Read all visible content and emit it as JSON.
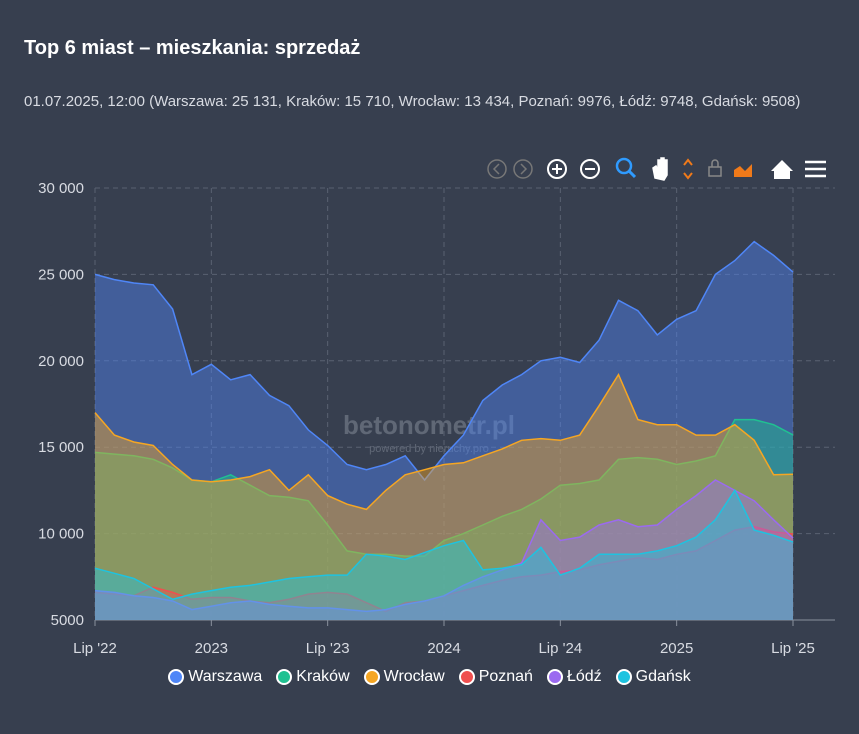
{
  "chart_data": {
    "type": "area",
    "title": "Top 6 miast – mieszkania: sprzedaż",
    "subtitle": "01.07.2025, 12:00 (Warszawa: 25 131, Kraków: 15 710, Wrocław: 13 434, Poznań: 9976, Łódź: 9748, Gdańsk: 9508)",
    "watermark": "betonometr.pl",
    "watermark_note": "powered by nieruchy.pro",
    "x": [
      "2022-07",
      "2022-08",
      "2022-09",
      "2022-10",
      "2022-11",
      "2022-12",
      "2023-01",
      "2023-02",
      "2023-03",
      "2023-04",
      "2023-05",
      "2023-06",
      "2023-07",
      "2023-08",
      "2023-09",
      "2023-10",
      "2023-11",
      "2023-12",
      "2024-01",
      "2024-02",
      "2024-03",
      "2024-04",
      "2024-05",
      "2024-06",
      "2024-07",
      "2024-08",
      "2024-09",
      "2024-10",
      "2024-11",
      "2024-12",
      "2025-01",
      "2025-02",
      "2025-03",
      "2025-04",
      "2025-05",
      "2025-06",
      "2025-07"
    ],
    "series": [
      {
        "name": "Warszawa",
        "color": "#4f86f7",
        "values": [
          25000,
          24700,
          24500,
          24400,
          23000,
          19200,
          19800,
          18900,
          19200,
          18000,
          17400,
          16000,
          15100,
          14000,
          13700,
          14000,
          14500,
          13100,
          14500,
          15700,
          17700,
          18600,
          19200,
          20000,
          20200,
          19900,
          21200,
          23500,
          22900,
          21500,
          22400,
          22900,
          25000,
          25800,
          26900,
          26100,
          25131
        ]
      },
      {
        "name": "Kraków",
        "color": "#20c191",
        "values": [
          14700,
          14600,
          14500,
          14300,
          13800,
          13100,
          13000,
          13400,
          12800,
          12200,
          12100,
          11900,
          10500,
          9000,
          8800,
          8800,
          8700,
          8700,
          9600,
          10000,
          10500,
          11000,
          11400,
          12000,
          12800,
          12900,
          13100,
          14300,
          14400,
          14300,
          14000,
          14200,
          14500,
          16600,
          16600,
          16300,
          15710
        ]
      },
      {
        "name": "Wrocław",
        "color": "#f5a623",
        "values": [
          17000,
          15700,
          15300,
          15100,
          14000,
          13100,
          13000,
          13100,
          13300,
          13700,
          12500,
          13400,
          12200,
          11700,
          11400,
          12500,
          13400,
          13700,
          14000,
          14100,
          14500,
          14900,
          15400,
          15500,
          15400,
          15700,
          17400,
          19200,
          16600,
          16300,
          16300,
          15700,
          15700,
          16300,
          15400,
          13400,
          13434
        ]
      },
      {
        "name": "Poznań",
        "color": "#ef4f4f",
        "values": [
          6600,
          6500,
          6400,
          6900,
          6600,
          6200,
          6300,
          6300,
          6100,
          6000,
          6200,
          6500,
          6600,
          6500,
          6000,
          5500,
          6000,
          6100,
          6400,
          6700,
          7000,
          7300,
          7500,
          7600,
          7800,
          7900,
          8200,
          8400,
          8600,
          8500,
          8800,
          9000,
          9600,
          10200,
          10400,
          10100,
          9976
        ]
      },
      {
        "name": "Łódź",
        "color": "#9b6af0",
        "values": [
          6700,
          6600,
          6400,
          6300,
          6100,
          5600,
          5800,
          6000,
          6100,
          5900,
          5800,
          5700,
          5700,
          5600,
          5500,
          5600,
          5900,
          6100,
          6400,
          7000,
          7500,
          7900,
          8300,
          10800,
          9600,
          9800,
          10500,
          10800,
          10400,
          10500,
          11400,
          12200,
          13100,
          12500,
          11900,
          10800,
          9748
        ]
      },
      {
        "name": "Gdańsk",
        "color": "#1ec3e0",
        "values": [
          8000,
          7700,
          7400,
          6800,
          6200,
          6500,
          6700,
          6900,
          7000,
          7200,
          7400,
          7500,
          7600,
          7600,
          8800,
          8700,
          8500,
          8900,
          9300,
          9600,
          7900,
          8000,
          8200,
          9200,
          7600,
          8000,
          8800,
          8800,
          8800,
          9000,
          9300,
          9800,
          10800,
          12500,
          10200,
          9900,
          9508
        ]
      }
    ],
    "xlim": [
      "2022-07",
      "2025-07"
    ],
    "xticks": [
      {
        "value": "2022-07",
        "label": "Lip '22"
      },
      {
        "value": "2023-01",
        "label": "2023"
      },
      {
        "value": "2023-07",
        "label": "Lip '23"
      },
      {
        "value": "2024-01",
        "label": "2024"
      },
      {
        "value": "2024-07",
        "label": "Lip '24"
      },
      {
        "value": "2025-01",
        "label": "2025"
      },
      {
        "value": "2025-07",
        "label": "Lip '25"
      }
    ],
    "ylim": [
      5000,
      30000
    ],
    "yticks": [
      5000,
      {
        "value": 10000,
        "label": "10 000"
      },
      {
        "value": 15000,
        "label": "15 000"
      },
      {
        "value": 20000,
        "label": "20 000"
      },
      {
        "value": 25000,
        "label": "25 000"
      },
      {
        "value": 30000,
        "label": "30 000"
      }
    ],
    "grid": true
  }
}
